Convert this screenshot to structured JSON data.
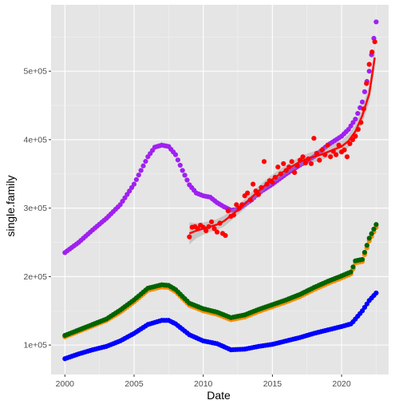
{
  "chart_data": {
    "type": "scatter",
    "xlabel": "Date",
    "ylabel": "single.family",
    "xlim": [
      1999.0,
      2023.4
    ],
    "ylim": [
      57000,
      597000
    ],
    "x_ticks": [
      2000,
      2005,
      2010,
      2015,
      2020
    ],
    "x_tick_labels": [
      "2000",
      "2005",
      "2010",
      "2015",
      "2020"
    ],
    "y_ticks": [
      100000,
      200000,
      300000,
      400000,
      500000
    ],
    "y_tick_labels": [
      "1e+05",
      "2e+05",
      "3e+05",
      "4e+05",
      "5e+05"
    ],
    "grid": true,
    "legend": "none",
    "background": "#e5e5e5",
    "series": [
      {
        "color": "#a020f0",
        "keypoints": [
          [
            2000.0,
            235000
          ],
          [
            2001.0,
            250000
          ],
          [
            2002.0,
            268000
          ],
          [
            2003.0,
            285000
          ],
          [
            2004.0,
            305000
          ],
          [
            2005.0,
            335000
          ],
          [
            2005.5,
            355000
          ],
          [
            2006.0,
            375000
          ],
          [
            2006.5,
            389000
          ],
          [
            2007.0,
            392000
          ],
          [
            2007.5,
            390000
          ],
          [
            2008.0,
            378000
          ],
          [
            2008.5,
            355000
          ],
          [
            2009.0,
            334000
          ],
          [
            2009.5,
            322000
          ],
          [
            2010.0,
            318000
          ],
          [
            2010.5,
            316000
          ],
          [
            2011.0,
            308000
          ],
          [
            2011.5,
            302000
          ],
          [
            2012.0,
            297000
          ],
          [
            2012.5,
            298000
          ],
          [
            2013.0,
            305000
          ],
          [
            2013.5,
            312000
          ],
          [
            2014.0,
            322000
          ],
          [
            2015.0,
            335000
          ],
          [
            2016.0,
            350000
          ],
          [
            2017.0,
            363000
          ],
          [
            2018.0,
            375000
          ],
          [
            2019.0,
            392000
          ],
          [
            2020.0,
            405000
          ],
          [
            2020.5,
            415000
          ],
          [
            2021.0,
            430000
          ],
          [
            2021.5,
            455000
          ],
          [
            2022.0,
            500000
          ],
          [
            2022.5,
            572000
          ]
        ]
      },
      {
        "color": "#ff8c00",
        "keypoints": [
          [
            2000.0,
            112000
          ],
          [
            2001.0,
            120000
          ],
          [
            2002.0,
            128000
          ],
          [
            2003.0,
            136000
          ],
          [
            2004.0,
            148000
          ],
          [
            2005.0,
            163000
          ],
          [
            2006.0,
            180000
          ],
          [
            2007.0,
            185000
          ],
          [
            2007.5,
            184000
          ],
          [
            2008.0,
            178000
          ],
          [
            2009.0,
            158000
          ],
          [
            2010.0,
            150000
          ],
          [
            2011.0,
            145000
          ],
          [
            2012.0,
            137000
          ],
          [
            2013.0,
            141000
          ],
          [
            2014.0,
            149000
          ],
          [
            2015.0,
            156000
          ],
          [
            2016.0,
            163000
          ],
          [
            2017.0,
            171000
          ],
          [
            2018.0,
            181000
          ],
          [
            2019.0,
            190000
          ],
          [
            2020.0,
            198000
          ],
          [
            2020.7,
            204000
          ],
          [
            2021.0,
            220000
          ],
          [
            2021.5,
            222000
          ],
          [
            2022.0,
            252000
          ],
          [
            2022.5,
            272000
          ]
        ]
      },
      {
        "color": "#006400",
        "keypoints": [
          [
            2000.0,
            114000
          ],
          [
            2001.0,
            122000
          ],
          [
            2002.0,
            130000
          ],
          [
            2003.0,
            138000
          ],
          [
            2004.0,
            151000
          ],
          [
            2005.0,
            166000
          ],
          [
            2006.0,
            183000
          ],
          [
            2007.0,
            188000
          ],
          [
            2007.5,
            187000
          ],
          [
            2008.0,
            181000
          ],
          [
            2009.0,
            161000
          ],
          [
            2010.0,
            153000
          ],
          [
            2011.0,
            148000
          ],
          [
            2012.0,
            140000
          ],
          [
            2013.0,
            144000
          ],
          [
            2014.0,
            152000
          ],
          [
            2015.0,
            159000
          ],
          [
            2016.0,
            166000
          ],
          [
            2017.0,
            174000
          ],
          [
            2018.0,
            184000
          ],
          [
            2019.0,
            193000
          ],
          [
            2020.0,
            201000
          ],
          [
            2020.7,
            207000
          ],
          [
            2021.0,
            223000
          ],
          [
            2021.5,
            225000
          ],
          [
            2022.0,
            256000
          ],
          [
            2022.5,
            276000
          ]
        ]
      },
      {
        "color": "#0000ff",
        "keypoints": [
          [
            2000.0,
            80000
          ],
          [
            2001.0,
            87000
          ],
          [
            2002.0,
            93000
          ],
          [
            2003.0,
            98000
          ],
          [
            2004.0,
            106000
          ],
          [
            2005.0,
            117000
          ],
          [
            2006.0,
            130000
          ],
          [
            2007.0,
            136000
          ],
          [
            2007.5,
            136000
          ],
          [
            2008.0,
            131000
          ],
          [
            2009.0,
            115000
          ],
          [
            2010.0,
            106000
          ],
          [
            2011.0,
            102000
          ],
          [
            2012.0,
            93000
          ],
          [
            2013.0,
            94000
          ],
          [
            2014.0,
            98000
          ],
          [
            2015.0,
            101000
          ],
          [
            2016.0,
            106000
          ],
          [
            2017.0,
            111000
          ],
          [
            2018.0,
            117000
          ],
          [
            2019.0,
            122000
          ],
          [
            2020.0,
            127000
          ],
          [
            2020.7,
            131000
          ],
          [
            2021.0,
            138000
          ],
          [
            2021.5,
            150000
          ],
          [
            2022.0,
            165000
          ],
          [
            2022.5,
            176000
          ]
        ]
      }
    ],
    "red_points": {
      "color": "#ff0000",
      "x": [
        2009.0,
        2009.2,
        2009.4,
        2009.6,
        2009.8,
        2010.0,
        2010.2,
        2010.4,
        2010.6,
        2010.8,
        2011.0,
        2011.2,
        2011.4,
        2011.6,
        2011.8,
        2012.0,
        2012.2,
        2012.4,
        2012.6,
        2012.8,
        2013.0,
        2013.2,
        2013.4,
        2013.6,
        2013.8,
        2014.0,
        2014.2,
        2014.4,
        2014.6,
        2014.8,
        2015.0,
        2015.2,
        2015.4,
        2015.6,
        2015.8,
        2016.0,
        2016.2,
        2016.4,
        2016.6,
        2016.8,
        2017.0,
        2017.2,
        2017.4,
        2017.6,
        2017.8,
        2018.0,
        2018.2,
        2018.4,
        2018.6,
        2018.8,
        2019.0,
        2019.2,
        2019.4,
        2019.6,
        2019.8,
        2020.0,
        2020.2,
        2020.4,
        2020.6,
        2020.8,
        2021.0,
        2021.2,
        2021.4,
        2021.6,
        2021.8,
        2022.0,
        2022.2,
        2022.4
      ],
      "y": [
        258000,
        272000,
        273000,
        270000,
        275000,
        272000,
        267000,
        273000,
        280000,
        270000,
        265000,
        278000,
        263000,
        260000,
        296000,
        288000,
        290000,
        305000,
        300000,
        305000,
        318000,
        322000,
        312000,
        335000,
        325000,
        320000,
        330000,
        368000,
        335000,
        340000,
        338000,
        345000,
        360000,
        350000,
        365000,
        355000,
        360000,
        368000,
        352000,
        362000,
        370000,
        375000,
        366000,
        372000,
        365000,
        402000,
        380000,
        370000,
        385000,
        378000,
        392000,
        375000,
        383000,
        378000,
        392000,
        382000,
        385000,
        375000,
        394000,
        400000,
        405000,
        415000,
        425000,
        445000,
        482000,
        510000,
        528000,
        543000
      ]
    },
    "smooth": {
      "color": "#ff0000",
      "band_color": "#999999",
      "x": [
        2009.0,
        2009.5,
        2010.0,
        2010.5,
        2011.0,
        2011.5,
        2012.0,
        2012.5,
        2013.0,
        2013.5,
        2014.0,
        2014.5,
        2015.0,
        2015.5,
        2016.0,
        2016.5,
        2017.0,
        2017.5,
        2018.0,
        2018.5,
        2019.0,
        2019.5,
        2020.0,
        2020.5,
        2021.0,
        2021.5,
        2022.0,
        2022.4
      ],
      "y": [
        263000,
        267000,
        270000,
        273000,
        276000,
        281000,
        289000,
        297000,
        306000,
        316000,
        325000,
        334000,
        342000,
        349000,
        356000,
        362000,
        368000,
        372000,
        375000,
        378000,
        382000,
        386000,
        390000,
        398000,
        412000,
        435000,
        467000,
        520000
      ],
      "se": [
        16000,
        11000,
        9000,
        8000,
        8000,
        8000,
        7500,
        7000,
        7000,
        7000,
        7000,
        7000,
        7000,
        7000,
        7000,
        7000,
        7000,
        7500,
        8000,
        8000,
        8000,
        8500,
        9000,
        9500,
        10000,
        11000,
        13000,
        16000
      ]
    }
  }
}
